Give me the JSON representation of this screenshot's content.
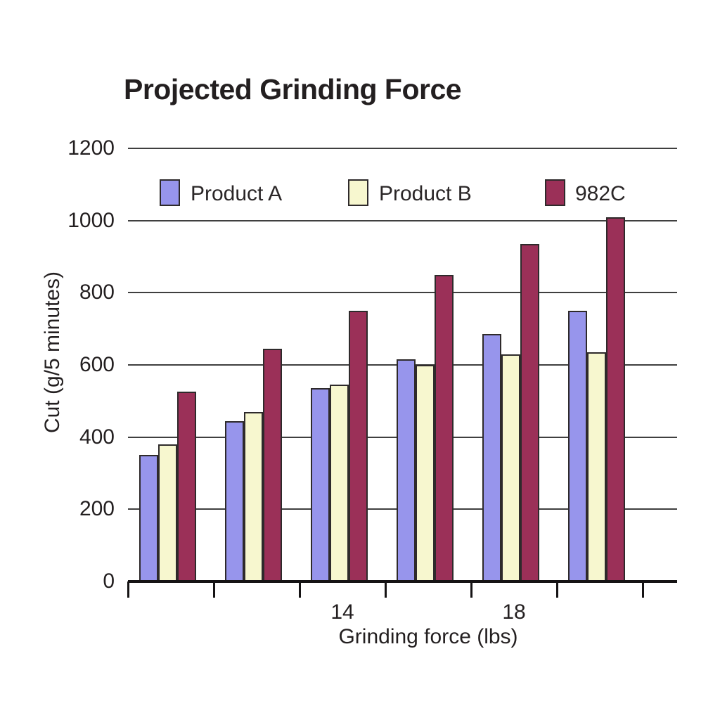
{
  "title": "Projected Grinding Force",
  "colors": {
    "product_a_fill": "#9795ec",
    "product_b_fill": "#f7f7cf",
    "c982_fill": "#9b3058",
    "bar_border": "#2e2a2b",
    "gridline": "#3f3f3f",
    "axis": "#151314",
    "text": "#231f20"
  },
  "y_axis": {
    "label": "Cut (g/5 minutes)",
    "ticks": [
      "0",
      "200",
      "400",
      "600",
      "800",
      "1000",
      "1200"
    ]
  },
  "x_axis": {
    "label": "Grinding force (lbs)",
    "visible_tick_labels": [
      {
        "label": "14",
        "group_index": 3
      },
      {
        "label": "18",
        "group_index": 5
      }
    ]
  },
  "legend": {
    "items": [
      "Product A",
      "Product B",
      "982C"
    ]
  },
  "chart_data": {
    "type": "bar",
    "title": "Projected Grinding Force",
    "xlabel": "Grinding force (lbs)",
    "ylabel": "Cut (g/5 minutes)",
    "ylim": [
      0,
      1200
    ],
    "ytick_interval": 200,
    "yticks": [
      0,
      200,
      400,
      600,
      800,
      1000,
      1200
    ],
    "grid": true,
    "legend_position": "top-inside",
    "num_groups": 6,
    "x_tick_labels_shown": [
      {
        "label": "14",
        "group_index": 3
      },
      {
        "label": "18",
        "group_index": 5
      }
    ],
    "series": [
      {
        "name": "Product A",
        "color": "#9795ec",
        "values": [
          350,
          445,
          535,
          615,
          685,
          750
        ]
      },
      {
        "name": "Product B",
        "color": "#f7f7cf",
        "values": [
          380,
          470,
          545,
          600,
          630,
          635
        ]
      },
      {
        "name": "982C",
        "color": "#9b3058",
        "values": [
          525,
          645,
          750,
          850,
          935,
          1010
        ]
      }
    ]
  }
}
